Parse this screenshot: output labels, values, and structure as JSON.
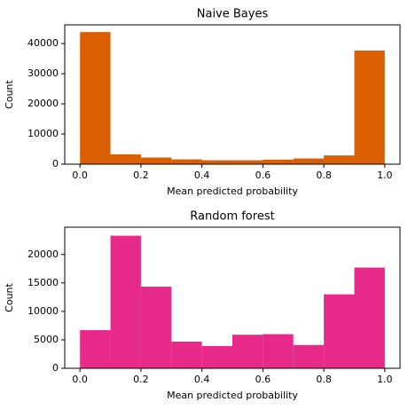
{
  "chart_data": [
    {
      "type": "histogram",
      "title": "Naive Bayes",
      "xlabel": "Mean predicted probability",
      "ylabel": "Count",
      "bins": [
        0,
        0.1,
        0.2,
        0.3,
        0.4,
        0.5,
        0.6,
        0.7,
        0.8,
        0.9,
        1.0
      ],
      "values": [
        43800,
        3250,
        2200,
        1600,
        1300,
        1300,
        1500,
        1900,
        2900,
        37700
      ],
      "color": "#d95f02",
      "xlim": [
        -0.05,
        1.05
      ],
      "ylim": [
        0,
        46200
      ],
      "xticks": [
        {
          "value": 0,
          "label": "0.0"
        },
        0.2,
        0.4,
        0.6,
        0.8,
        {
          "value": 1,
          "label": "1.0"
        }
      ],
      "yticks": [
        0,
        10000,
        20000,
        30000,
        40000
      ]
    },
    {
      "type": "histogram",
      "title": "Random forest",
      "xlabel": "Mean predicted probability",
      "ylabel": "Count",
      "bins": [
        0,
        0.1,
        0.2,
        0.3,
        0.4,
        0.5,
        0.6,
        0.7,
        0.8,
        0.9,
        1.0
      ],
      "values": [
        6700,
        23300,
        14350,
        4700,
        3900,
        5900,
        6000,
        4100,
        13000,
        17700
      ],
      "color": "#e7298a",
      "xlim": [
        -0.05,
        1.05
      ],
      "ylim": [
        0,
        24800
      ],
      "xticks": [
        {
          "value": 0,
          "label": "0.0"
        },
        0.2,
        0.4,
        0.6,
        0.8,
        {
          "value": 1,
          "label": "1.0"
        }
      ],
      "yticks": [
        0,
        5000,
        10000,
        15000,
        20000
      ]
    }
  ]
}
